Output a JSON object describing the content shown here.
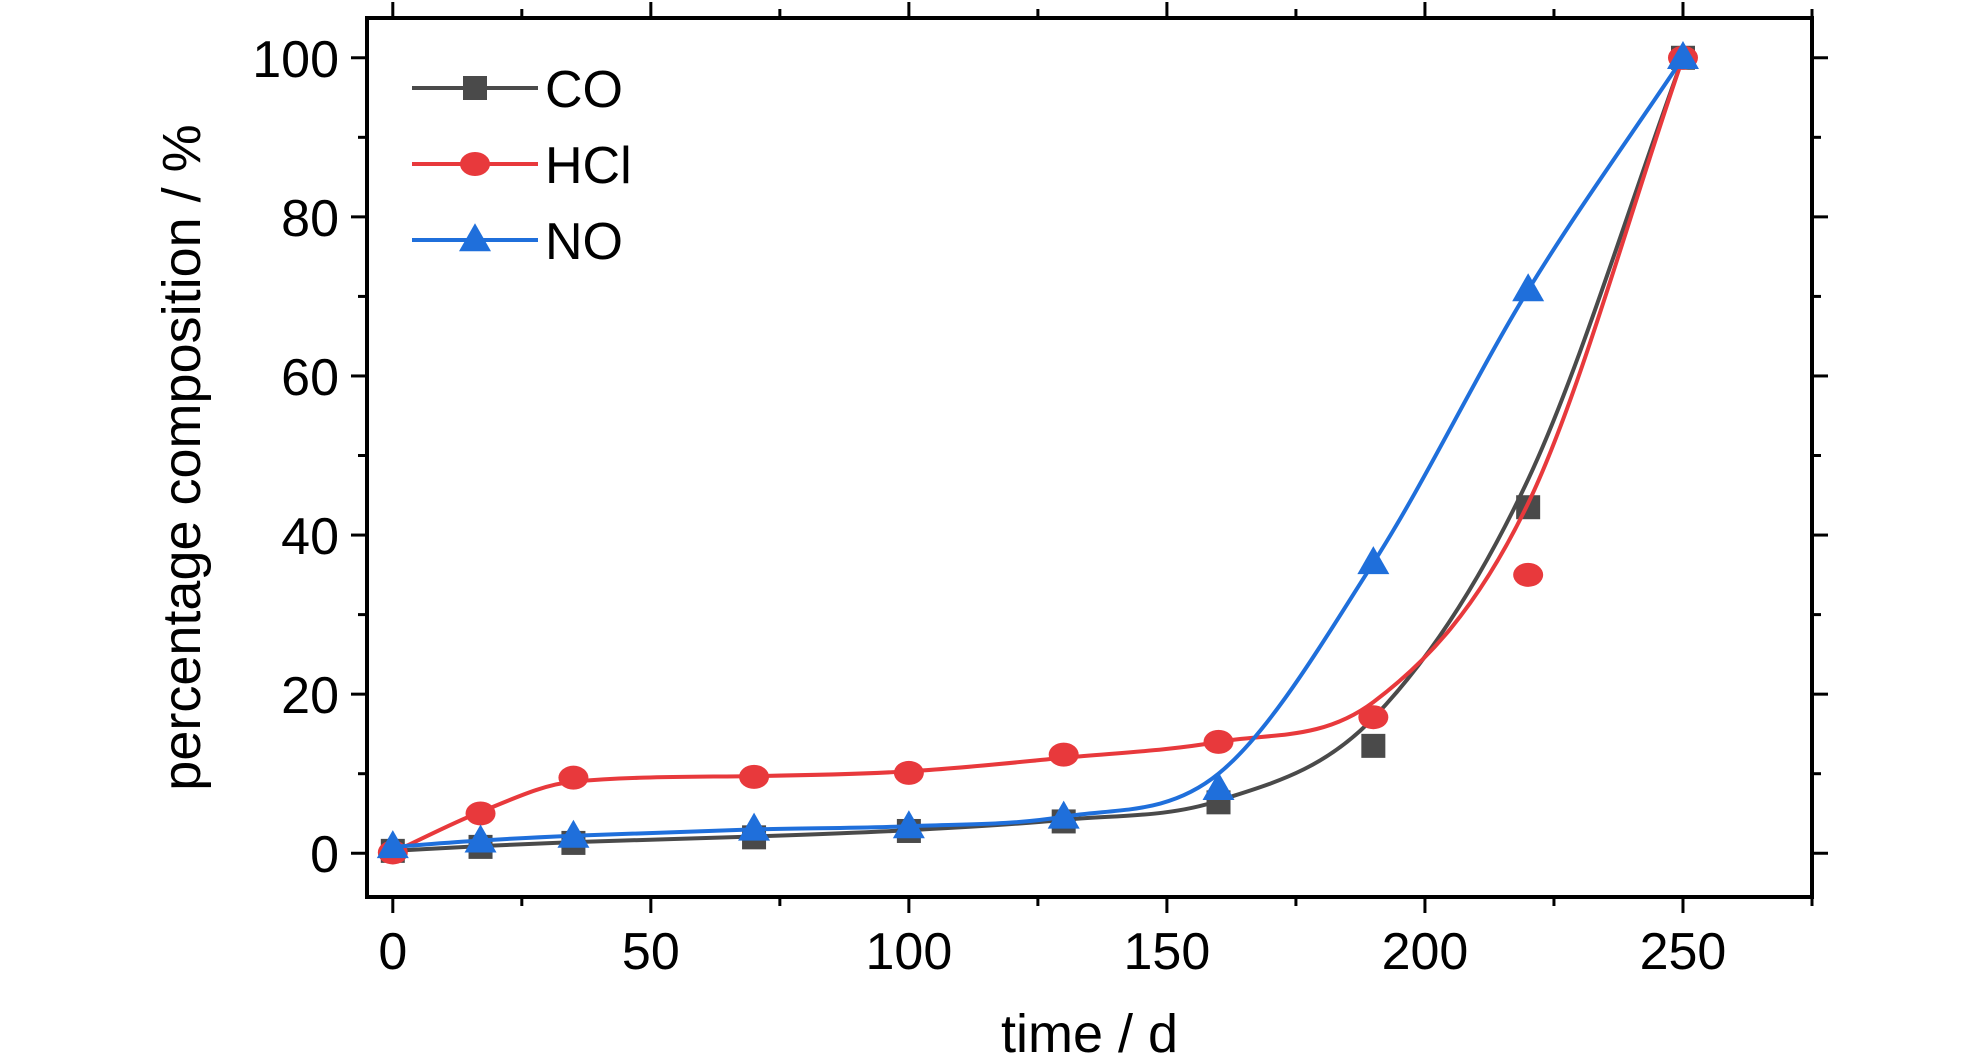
{
  "chart_data": {
    "type": "scatter",
    "title": "",
    "xlabel": "time / d",
    "ylabel": "percentage composition / %",
    "xlim": [
      -5,
      275
    ],
    "ylim": [
      -5.5,
      105
    ],
    "xticks": [
      0,
      50,
      100,
      150,
      200,
      250
    ],
    "yticks": [
      0,
      20,
      40,
      60,
      80,
      100
    ],
    "xtick_labels": [
      "0",
      "50",
      "100",
      "150",
      "200",
      "250"
    ],
    "ytick_labels": [
      "0",
      "20",
      "40",
      "60",
      "80",
      "100"
    ],
    "grid": false,
    "legend_position": "top-left",
    "series": [
      {
        "name": "CO",
        "marker": "square",
        "color": "#4a4a4a",
        "x": [
          0,
          17,
          35,
          70,
          100,
          130,
          160,
          190,
          220,
          250
        ],
        "y": [
          0.3,
          0.8,
          1.3,
          2.0,
          2.8,
          4.0,
          6.4,
          13.5,
          43.5,
          100
        ],
        "fit_y": [
          0.3,
          0.9,
          1.4,
          2.1,
          2.9,
          4.2,
          6.6,
          17.0,
          47.0,
          100
        ]
      },
      {
        "name": "HCl",
        "marker": "circle",
        "color": "#e8393c",
        "x": [
          0,
          17,
          35,
          70,
          100,
          130,
          160,
          190,
          220,
          250
        ],
        "y": [
          0.1,
          5.0,
          9.5,
          9.6,
          10.1,
          12.4,
          14.0,
          17.1,
          35.0,
          100
        ],
        "fit_y": [
          0.1,
          5.2,
          9.0,
          9.7,
          10.3,
          12.0,
          14.0,
          19.0,
          44.0,
          100
        ]
      },
      {
        "name": "NO",
        "marker": "triangle",
        "color": "#1f6fdb",
        "x": [
          0,
          17,
          35,
          70,
          100,
          130,
          160,
          190,
          220,
          250
        ],
        "y": [
          0.8,
          1.5,
          2.1,
          3.0,
          3.3,
          4.5,
          8.1,
          36.5,
          70.8,
          100
        ],
        "fit_y": [
          0.8,
          1.6,
          2.2,
          3.0,
          3.4,
          4.6,
          10.0,
          36.5,
          70.8,
          100
        ]
      }
    ]
  }
}
